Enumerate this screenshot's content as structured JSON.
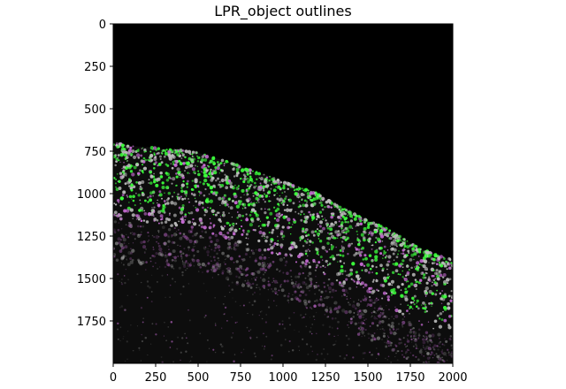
{
  "figure": {
    "title": "LPR_object outlines"
  },
  "image": {
    "description_colors": {
      "background": "#000000",
      "tissue_gray": "#bdbdbd",
      "object_fill": "#3cff3c",
      "outline": "#c36ad0"
    },
    "x_range": [
      0,
      2000
    ],
    "y_range": [
      0,
      2000
    ],
    "y_axis_inverted": true,
    "tissue_upper_edge": [
      [
        0,
        700
      ],
      [
        100,
        720
      ],
      [
        200,
        725
      ],
      [
        300,
        740
      ],
      [
        400,
        745
      ],
      [
        500,
        760
      ],
      [
        600,
        790
      ],
      [
        700,
        820
      ],
      [
        800,
        860
      ],
      [
        900,
        890
      ],
      [
        1000,
        930
      ],
      [
        1100,
        960
      ],
      [
        1200,
        1000
      ],
      [
        1300,
        1060
      ],
      [
        1400,
        1110
      ],
      [
        1500,
        1160
      ],
      [
        1600,
        1200
      ],
      [
        1700,
        1260
      ],
      [
        1800,
        1320
      ],
      [
        1900,
        1360
      ],
      [
        2000,
        1390
      ]
    ]
  },
  "axes": {
    "x_ticks": [
      "0",
      "250",
      "500",
      "750",
      "1000",
      "1250",
      "1500",
      "1750",
      "2000"
    ],
    "y_ticks": [
      "0",
      "250",
      "500",
      "750",
      "1000",
      "1250",
      "1500",
      "1750"
    ],
    "x_tick_values": [
      0,
      250,
      500,
      750,
      1000,
      1250,
      1500,
      1750,
      2000
    ],
    "y_tick_values": [
      0,
      250,
      500,
      750,
      1000,
      1250,
      1500,
      1750
    ]
  }
}
